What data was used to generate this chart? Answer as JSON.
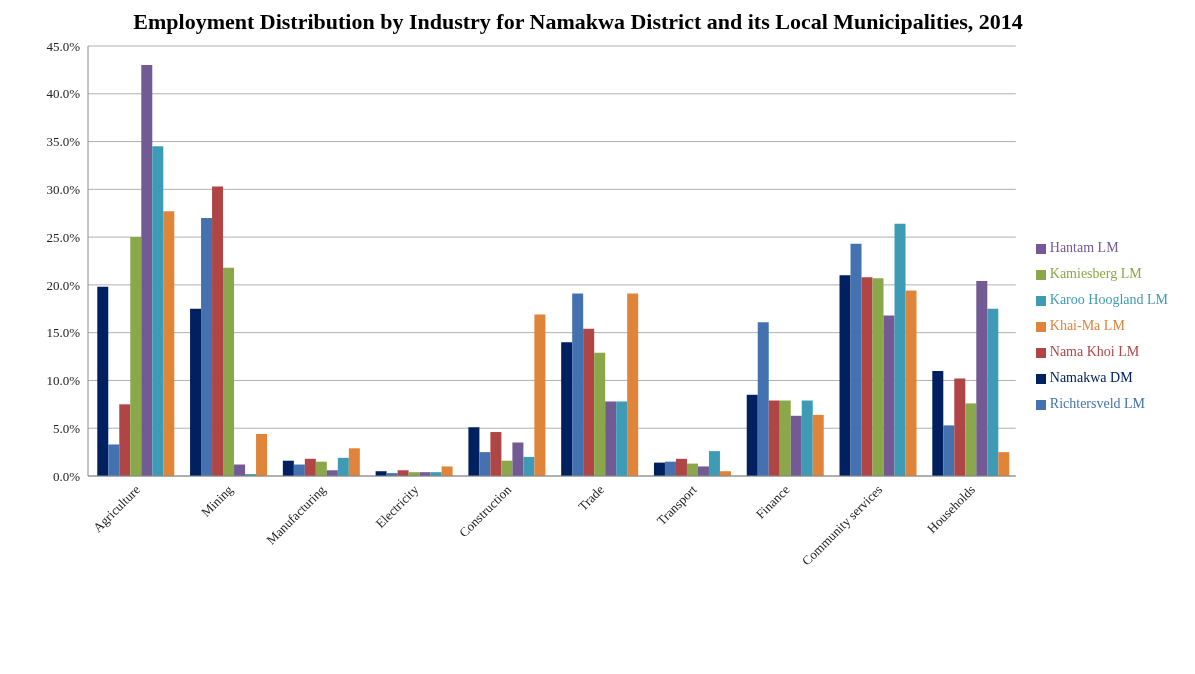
{
  "chart_data": {
    "type": "bar",
    "title": "Employment Distribution by Industry for Namakwa District and its Local Municipalities, 2014",
    "categories": [
      "Agriculture",
      "Mining",
      "Manufacturing",
      "Electricity",
      "Construction",
      "Trade",
      "Transport",
      "Finance",
      "Community services",
      "Households"
    ],
    "series": [
      {
        "name": "Namakwa DM",
        "color": "#002060",
        "values": [
          19.8,
          17.5,
          1.6,
          0.5,
          5.1,
          14.0,
          1.4,
          8.5,
          21.0,
          11.0
        ]
      },
      {
        "name": "Richtersveld LM",
        "color": "#4472b0",
        "values": [
          3.3,
          27.0,
          1.2,
          0.3,
          2.5,
          19.1,
          1.5,
          16.1,
          24.3,
          5.3
        ]
      },
      {
        "name": "Nama Khoi LM",
        "color": "#b04545",
        "values": [
          7.5,
          30.3,
          1.8,
          0.6,
          4.6,
          15.4,
          1.8,
          7.9,
          20.8,
          10.2
        ]
      },
      {
        "name": "Kamiesberg LM",
        "color": "#8aa84a",
        "values": [
          25.0,
          21.8,
          1.5,
          0.4,
          1.6,
          12.9,
          1.3,
          7.9,
          20.7,
          7.6
        ]
      },
      {
        "name": "Hantam LM",
        "color": "#725a95",
        "values": [
          43.0,
          1.2,
          0.6,
          0.4,
          3.5,
          7.8,
          1.0,
          6.3,
          16.8,
          20.4
        ]
      },
      {
        "name": "Karoo Hoogland LM",
        "color": "#3e9bb5",
        "values": [
          34.5,
          0.2,
          1.9,
          0.4,
          2.0,
          7.8,
          2.6,
          7.9,
          26.4,
          17.5
        ]
      },
      {
        "name": "Khai-Ma LM",
        "color": "#e0843a",
        "values": [
          27.7,
          4.4,
          2.9,
          1.0,
          16.9,
          19.1,
          0.5,
          6.4,
          19.4,
          2.5
        ]
      }
    ],
    "ylim": [
      0,
      45
    ],
    "yticks": [
      {
        "value": 0,
        "label": "0.0%"
      },
      {
        "value": 5,
        "label": "5.0%"
      },
      {
        "value": 10,
        "label": "10.0%"
      },
      {
        "value": 15,
        "label": "15.0%"
      },
      {
        "value": 20,
        "label": "20.0%"
      },
      {
        "value": 25,
        "label": "25.0%"
      },
      {
        "value": 30,
        "label": "30.0%"
      },
      {
        "value": 35,
        "label": "35.0%"
      },
      {
        "value": 40,
        "label": "40.0%"
      },
      {
        "value": 45,
        "label": "45.0%"
      }
    ],
    "grid": "y",
    "legend": "right"
  }
}
